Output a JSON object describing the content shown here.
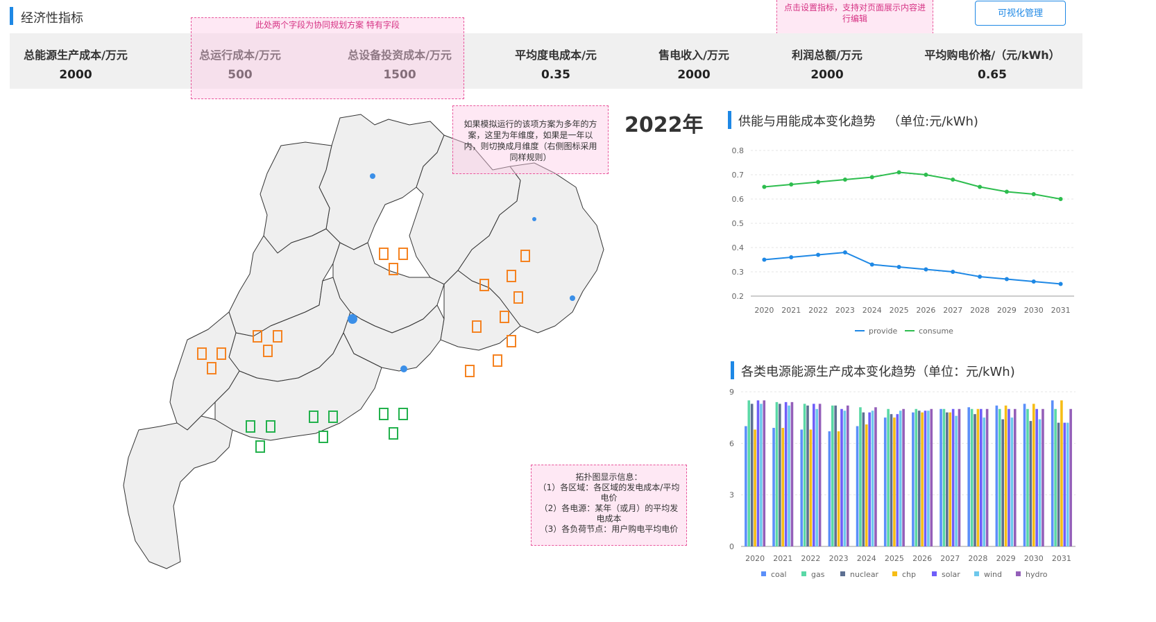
{
  "header": {
    "title": "经济性指标",
    "button_label": "可视化管理"
  },
  "metrics": [
    {
      "label": "总能源生产成本/万元",
      "value": "2000"
    },
    {
      "label": "总运行成本/万元",
      "value": "500"
    },
    {
      "label": "总设备投资成本/万元",
      "value": "1500"
    },
    {
      "label": "平均度电成本/元",
      "value": "0.35"
    },
    {
      "label": "售电收入/万元",
      "value": "2000"
    },
    {
      "label": "利润总额/万元",
      "value": "2000"
    },
    {
      "label": "平均购电价格/（元/kWh）",
      "value": "0.65"
    }
  ],
  "notes": {
    "collab": "此处两个字段为协同规划方案 特有字段",
    "settings": "点击设置指标，支持对页面展示内容进行编辑",
    "year_note": "如果模拟运行的该项方案为多年的方案，这里为年维度，如果是一年以内，则切换成月维度（右侧图标采用同样规则）",
    "topo_title": "拓扑图显示信息：",
    "topo_1": "（1）各区域：各区域的发电成本/平均电价",
    "topo_2": "（2）各电源：某年（或月）的平均发电成本",
    "topo_3": "（3）各负荷节点：用户购电平均电价"
  },
  "map": {
    "year_label": "2022年"
  },
  "colors": {
    "accent": "#1e88e5",
    "provide": "#1e88e5",
    "consume": "#2dbd4e",
    "map_fill": "#efefef",
    "orange_marker": "#f58220",
    "green_marker": "#22b14c"
  },
  "chart_data": [
    {
      "type": "line",
      "title": "供能与用能成本变化趋势",
      "unit": "（单位:元/kWh)",
      "x": [
        "2020",
        "2021",
        "2022",
        "2023",
        "2024",
        "2025",
        "2026",
        "2027",
        "2028",
        "2029",
        "2030",
        "2031"
      ],
      "ylim": [
        0.2,
        0.8
      ],
      "yticks": [
        "0.2",
        "0.3",
        "0.4",
        "0.5",
        "0.6",
        "0.7",
        "0.8"
      ],
      "series": [
        {
          "name": "provide",
          "color": "#1e88e5",
          "values": [
            0.35,
            0.36,
            0.37,
            0.38,
            0.33,
            0.32,
            0.31,
            0.3,
            0.28,
            0.27,
            0.26,
            0.25
          ]
        },
        {
          "name": "consume",
          "color": "#2dbd4e",
          "values": [
            0.65,
            0.66,
            0.67,
            0.68,
            0.69,
            0.71,
            0.7,
            0.68,
            0.65,
            0.63,
            0.62,
            0.6
          ]
        }
      ],
      "grid": true,
      "legend": "bottom"
    },
    {
      "type": "bar",
      "title": "各类电源能源生产成本变化趋势（单位：元/kWh)",
      "categories": [
        "2020",
        "2021",
        "2022",
        "2023",
        "2024",
        "2025",
        "2026",
        "2027",
        "2028",
        "2029",
        "2030",
        "2031"
      ],
      "ylim": [
        0,
        9
      ],
      "yticks": [
        "0",
        "3",
        "6",
        "9"
      ],
      "series": [
        {
          "name": "coal",
          "color": "#5b8ff9",
          "values": [
            7.0,
            6.9,
            6.8,
            6.7,
            7.0,
            7.5,
            7.8,
            8.0,
            8.1,
            8.2,
            8.3,
            8.5
          ]
        },
        {
          "name": "gas",
          "color": "#5ad8a6",
          "values": [
            8.5,
            8.4,
            8.3,
            8.2,
            8.1,
            8.0,
            8.0,
            8.0,
            8.0,
            8.0,
            8.0,
            8.0
          ]
        },
        {
          "name": "nuclear",
          "color": "#5d7092",
          "values": [
            8.3,
            8.3,
            8.2,
            8.2,
            7.8,
            7.7,
            7.9,
            7.8,
            7.7,
            7.4,
            7.3,
            7.2
          ]
        },
        {
          "name": "chp",
          "color": "#f6bd16",
          "values": [
            6.8,
            6.9,
            6.8,
            6.7,
            7.1,
            7.5,
            7.8,
            7.8,
            8.0,
            8.2,
            8.3,
            8.5
          ]
        },
        {
          "name": "solar",
          "color": "#6f5ef9",
          "values": [
            8.5,
            8.4,
            8.3,
            8.0,
            7.8,
            7.7,
            7.9,
            8.0,
            8.0,
            8.0,
            8.0,
            7.2
          ]
        },
        {
          "name": "wind",
          "color": "#6dc8ec",
          "values": [
            8.3,
            8.2,
            8.0,
            7.9,
            7.9,
            7.9,
            7.9,
            7.6,
            7.5,
            7.5,
            7.4,
            7.2
          ]
        },
        {
          "name": "hydro",
          "color": "#945fb9",
          "values": [
            8.5,
            8.4,
            8.3,
            8.2,
            8.1,
            8.0,
            8.0,
            8.0,
            8.0,
            8.0,
            8.0,
            8.0
          ]
        }
      ],
      "legend": "bottom"
    }
  ]
}
